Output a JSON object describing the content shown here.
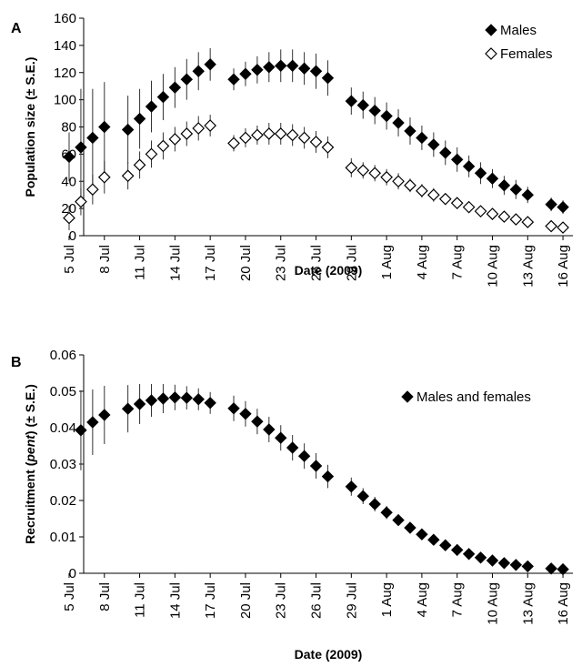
{
  "chart_data": [
    {
      "panel": "A",
      "type": "scatter",
      "xlabel": "Date (2009)",
      "ylabel": "Population size (± S.E.)",
      "ylim": [
        0,
        160
      ],
      "yticks": [
        0,
        20,
        40,
        60,
        80,
        100,
        120,
        140,
        160
      ],
      "x_start": "5 Jul",
      "xticks": [
        {
          "i": 0,
          "label": "5 Jul"
        },
        {
          "i": 3,
          "label": "8 Jul"
        },
        {
          "i": 6,
          "label": "11 Jul"
        },
        {
          "i": 9,
          "label": "14 Jul"
        },
        {
          "i": 12,
          "label": "17 Jul"
        },
        {
          "i": 15,
          "label": "20 Jul"
        },
        {
          "i": 18,
          "label": "23 Jul"
        },
        {
          "i": 21,
          "label": "26 Jul"
        },
        {
          "i": 24,
          "label": "29 Jul"
        },
        {
          "i": 27,
          "label": "1 Aug"
        },
        {
          "i": 30,
          "label": "4 Aug"
        },
        {
          "i": 33,
          "label": "7 Aug"
        },
        {
          "i": 36,
          "label": "10 Aug"
        },
        {
          "i": 39,
          "label": "13 Aug"
        },
        {
          "i": 42,
          "label": "16 Aug"
        }
      ],
      "grid": false,
      "legend": "top-right",
      "series": [
        {
          "name": "Males",
          "marker": "filled-diamond",
          "points": [
            {
              "x": 0,
              "y": 58,
              "se": 18
            },
            {
              "x": 1,
              "y": 65,
              "se": 43
            },
            {
              "x": 2,
              "y": 72,
              "se": 36
            },
            {
              "x": 3,
              "y": 80,
              "se": 33
            },
            {
              "x": 5,
              "y": 78,
              "se": 25
            },
            {
              "x": 6,
              "y": 86,
              "se": 22
            },
            {
              "x": 7,
              "y": 95,
              "se": 19
            },
            {
              "x": 8,
              "y": 102,
              "se": 17
            },
            {
              "x": 9,
              "y": 109,
              "se": 15
            },
            {
              "x": 10,
              "y": 115,
              "se": 15
            },
            {
              "x": 11,
              "y": 121,
              "se": 14
            },
            {
              "x": 12,
              "y": 126,
              "se": 12
            },
            {
              "x": 14,
              "y": 115,
              "se": 8
            },
            {
              "x": 15,
              "y": 119,
              "se": 9
            },
            {
              "x": 16,
              "y": 122,
              "se": 10
            },
            {
              "x": 17,
              "y": 124,
              "se": 11
            },
            {
              "x": 18,
              "y": 125,
              "se": 12
            },
            {
              "x": 19,
              "y": 125,
              "se": 12
            },
            {
              "x": 20,
              "y": 123,
              "se": 12
            },
            {
              "x": 21,
              "y": 121,
              "se": 13
            },
            {
              "x": 22,
              "y": 116,
              "se": 13
            },
            {
              "x": 24,
              "y": 99,
              "se": 10
            },
            {
              "x": 25,
              "y": 96,
              "se": 10
            },
            {
              "x": 26,
              "y": 92,
              "se": 10
            },
            {
              "x": 27,
              "y": 88,
              "se": 10
            },
            {
              "x": 28,
              "y": 83,
              "se": 10
            },
            {
              "x": 29,
              "y": 77,
              "se": 10
            },
            {
              "x": 30,
              "y": 72,
              "se": 9
            },
            {
              "x": 31,
              "y": 67,
              "se": 9
            },
            {
              "x": 32,
              "y": 61,
              "se": 9
            },
            {
              "x": 33,
              "y": 56,
              "se": 9
            },
            {
              "x": 34,
              "y": 51,
              "se": 8
            },
            {
              "x": 35,
              "y": 46,
              "se": 8
            },
            {
              "x": 36,
              "y": 42,
              "se": 7
            },
            {
              "x": 37,
              "y": 37,
              "se": 7
            },
            {
              "x": 38,
              "y": 34,
              "se": 7
            },
            {
              "x": 39,
              "y": 30,
              "se": 6
            },
            {
              "x": 41,
              "y": 23,
              "se": 5
            },
            {
              "x": 42,
              "y": 21,
              "se": 5
            }
          ]
        },
        {
          "name": "Females",
          "marker": "open-diamond",
          "points": [
            {
              "x": 0,
              "y": 13,
              "se": 9
            },
            {
              "x": 1,
              "y": 25,
              "se": 10
            },
            {
              "x": 2,
              "y": 34,
              "se": 11
            },
            {
              "x": 3,
              "y": 43,
              "se": 12
            },
            {
              "x": 5,
              "y": 44,
              "se": 10
            },
            {
              "x": 6,
              "y": 52,
              "se": 10
            },
            {
              "x": 7,
              "y": 60,
              "se": 10
            },
            {
              "x": 8,
              "y": 66,
              "se": 10
            },
            {
              "x": 9,
              "y": 71,
              "se": 9
            },
            {
              "x": 10,
              "y": 75,
              "se": 9
            },
            {
              "x": 11,
              "y": 79,
              "se": 9
            },
            {
              "x": 12,
              "y": 81,
              "se": 8
            },
            {
              "x": 14,
              "y": 68,
              "se": 6
            },
            {
              "x": 15,
              "y": 72,
              "se": 7
            },
            {
              "x": 16,
              "y": 74,
              "se": 7
            },
            {
              "x": 17,
              "y": 75,
              "se": 8
            },
            {
              "x": 18,
              "y": 75,
              "se": 8
            },
            {
              "x": 19,
              "y": 74,
              "se": 8
            },
            {
              "x": 20,
              "y": 72,
              "se": 8
            },
            {
              "x": 21,
              "y": 69,
              "se": 8
            },
            {
              "x": 22,
              "y": 65,
              "se": 8
            },
            {
              "x": 24,
              "y": 50,
              "se": 7
            },
            {
              "x": 25,
              "y": 48,
              "se": 6
            },
            {
              "x": 26,
              "y": 46,
              "se": 6
            },
            {
              "x": 27,
              "y": 43,
              "se": 6
            },
            {
              "x": 28,
              "y": 40,
              "se": 6
            },
            {
              "x": 29,
              "y": 37,
              "se": 5
            },
            {
              "x": 30,
              "y": 33,
              "se": 5
            },
            {
              "x": 31,
              "y": 30,
              "se": 5
            },
            {
              "x": 32,
              "y": 27,
              "se": 4
            },
            {
              "x": 33,
              "y": 24,
              "se": 4
            },
            {
              "x": 34,
              "y": 21,
              "se": 4
            },
            {
              "x": 35,
              "y": 18,
              "se": 3
            },
            {
              "x": 36,
              "y": 16,
              "se": 3
            },
            {
              "x": 37,
              "y": 14,
              "se": 3
            },
            {
              "x": 38,
              "y": 12,
              "se": 2
            },
            {
              "x": 39,
              "y": 10,
              "se": 2
            },
            {
              "x": 41,
              "y": 7,
              "se": 2
            },
            {
              "x": 42,
              "y": 6,
              "se": 2
            }
          ]
        }
      ]
    },
    {
      "panel": "B",
      "type": "scatter",
      "xlabel": "Date (2009)",
      "ylabel": "Recruitment (pent) (± S.E.)",
      "ylabel_parts": [
        {
          "text": "Recruitment (",
          "italic": false
        },
        {
          "text": "pent",
          "italic": true
        },
        {
          "text": ") (± S.E.)",
          "italic": false
        }
      ],
      "ylim": [
        0,
        0.06
      ],
      "yticks": [
        0,
        0.01,
        0.02,
        0.03,
        0.04,
        0.05,
        0.06
      ],
      "ytick_labels": [
        "0",
        "0.01",
        "0.02",
        "0.03",
        "0.04",
        "0.05",
        "0.06"
      ],
      "x_start": "5 Jul",
      "xticks": [
        {
          "i": 0,
          "label": "5 Jul"
        },
        {
          "i": 3,
          "label": "8 Jul"
        },
        {
          "i": 6,
          "label": "11 Jul"
        },
        {
          "i": 9,
          "label": "14 Jul"
        },
        {
          "i": 12,
          "label": "17 Jul"
        },
        {
          "i": 15,
          "label": "20 Jul"
        },
        {
          "i": 18,
          "label": "23 Jul"
        },
        {
          "i": 21,
          "label": "26 Jul"
        },
        {
          "i": 24,
          "label": "29 Jul"
        },
        {
          "i": 27,
          "label": "1 Aug"
        },
        {
          "i": 30,
          "label": "4 Aug"
        },
        {
          "i": 33,
          "label": "7 Aug"
        },
        {
          "i": 36,
          "label": "10 Aug"
        },
        {
          "i": 39,
          "label": "13 Aug"
        },
        {
          "i": 42,
          "label": "16 Aug"
        }
      ],
      "grid": false,
      "legend": "top-right",
      "series": [
        {
          "name": "Males and females",
          "marker": "filled-diamond",
          "points": [
            {
              "x": 1,
              "y": 0.0393,
              "se": 0.011
            },
            {
              "x": 2,
              "y": 0.0415,
              "se": 0.009
            },
            {
              "x": 3,
              "y": 0.0435,
              "se": 0.008
            },
            {
              "x": 5,
              "y": 0.0452,
              "se": 0.0065
            },
            {
              "x": 6,
              "y": 0.0465,
              "se": 0.0055
            },
            {
              "x": 7,
              "y": 0.0475,
              "se": 0.0045
            },
            {
              "x": 8,
              "y": 0.048,
              "se": 0.004
            },
            {
              "x": 9,
              "y": 0.0483,
              "se": 0.0035
            },
            {
              "x": 10,
              "y": 0.0482,
              "se": 0.0032
            },
            {
              "x": 11,
              "y": 0.0478,
              "se": 0.003
            },
            {
              "x": 12,
              "y": 0.0468,
              "se": 0.003
            },
            {
              "x": 14,
              "y": 0.0453,
              "se": 0.0035
            },
            {
              "x": 15,
              "y": 0.0438,
              "se": 0.0035
            },
            {
              "x": 16,
              "y": 0.0417,
              "se": 0.0035
            },
            {
              "x": 17,
              "y": 0.0395,
              "se": 0.0035
            },
            {
              "x": 18,
              "y": 0.0372,
              "se": 0.0035
            },
            {
              "x": 19,
              "y": 0.0345,
              "se": 0.0035
            },
            {
              "x": 20,
              "y": 0.0322,
              "se": 0.0035
            },
            {
              "x": 21,
              "y": 0.0295,
              "se": 0.0035
            },
            {
              "x": 22,
              "y": 0.0266,
              "se": 0.0032
            },
            {
              "x": 24,
              "y": 0.0238,
              "se": 0.0025
            },
            {
              "x": 25,
              "y": 0.0212,
              "se": 0.0022
            },
            {
              "x": 26,
              "y": 0.019,
              "se": 0.002
            },
            {
              "x": 27,
              "y": 0.0167,
              "se": 0.0018
            },
            {
              "x": 28,
              "y": 0.0146,
              "se": 0.0016
            },
            {
              "x": 29,
              "y": 0.0125,
              "se": 0.0014
            },
            {
              "x": 30,
              "y": 0.0107,
              "se": 0.0012
            },
            {
              "x": 31,
              "y": 0.0092,
              "se": 0.001
            },
            {
              "x": 32,
              "y": 0.0077,
              "se": 0.0009
            },
            {
              "x": 33,
              "y": 0.0064,
              "se": 0.0008
            },
            {
              "x": 34,
              "y": 0.0053,
              "se": 0.0007
            },
            {
              "x": 35,
              "y": 0.0043,
              "se": 0.0006
            },
            {
              "x": 36,
              "y": 0.0035,
              "se": 0.0005
            },
            {
              "x": 37,
              "y": 0.0028,
              "se": 0.0004
            },
            {
              "x": 38,
              "y": 0.0023,
              "se": 0.0003
            },
            {
              "x": 39,
              "y": 0.0019,
              "se": 0.0003
            },
            {
              "x": 41,
              "y": 0.0013,
              "se": 0.0002
            },
            {
              "x": 42,
              "y": 0.0011,
              "se": 0.0002
            }
          ]
        }
      ]
    }
  ]
}
